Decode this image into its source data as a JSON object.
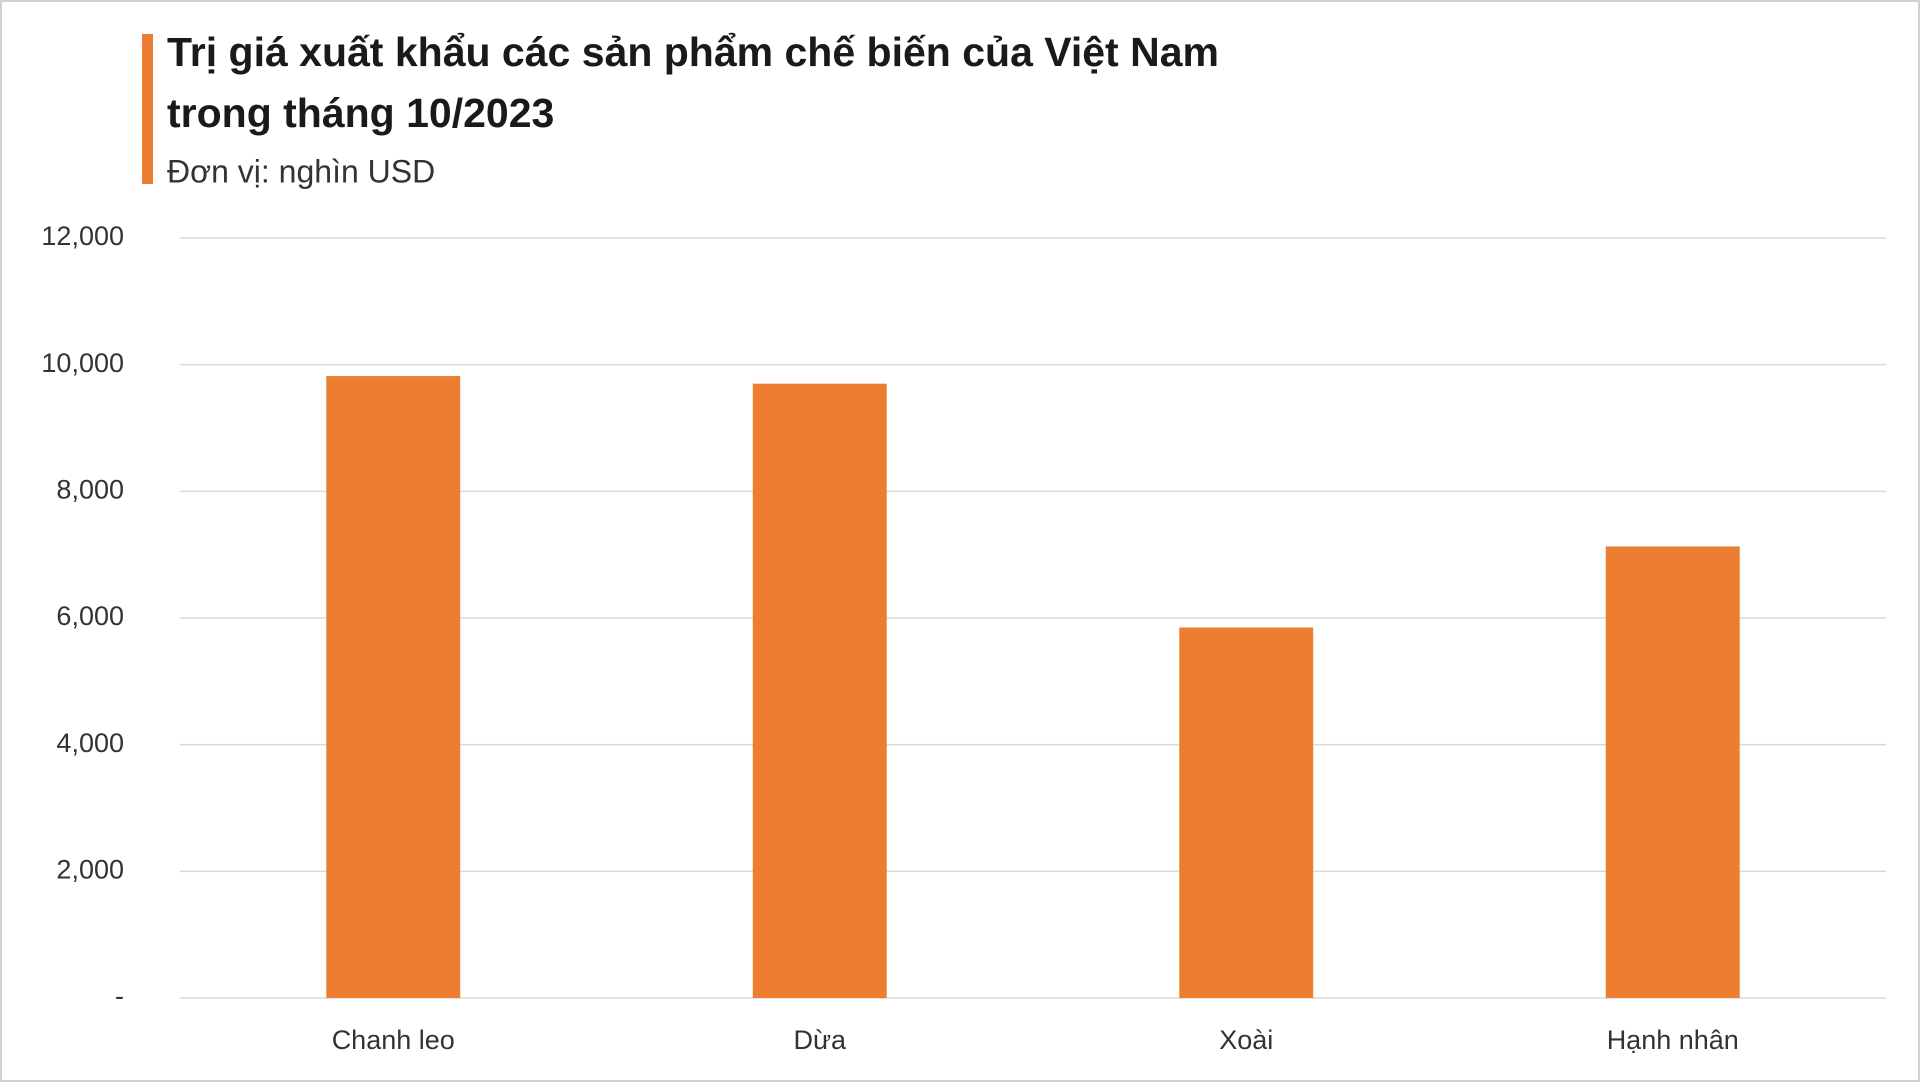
{
  "chart_data": {
    "type": "bar",
    "title": "Trị giá xuất khẩu các sản phẩm chế biến của Việt Nam",
    "title_line2": "trong tháng 10/2023",
    "subtitle": "Đơn vị: nghìn USD",
    "categories": [
      "Chanh leo",
      "Dừa",
      "Xoài",
      "Hạnh nhân"
    ],
    "values": [
      9820,
      9700,
      5850,
      7130
    ],
    "color": "#ED7D31",
    "ylim": [
      0,
      12000
    ],
    "yticks": [
      {
        "value": 0,
        "label": "-"
      },
      {
        "value": 2000,
        "label": "2,000"
      },
      {
        "value": 4000,
        "label": "4,000"
      },
      {
        "value": 6000,
        "label": "6,000"
      },
      {
        "value": 8000,
        "label": "8,000"
      },
      {
        "value": 10000,
        "label": "10,000"
      },
      {
        "value": 12000,
        "label": "12,000"
      }
    ],
    "grid": true
  }
}
